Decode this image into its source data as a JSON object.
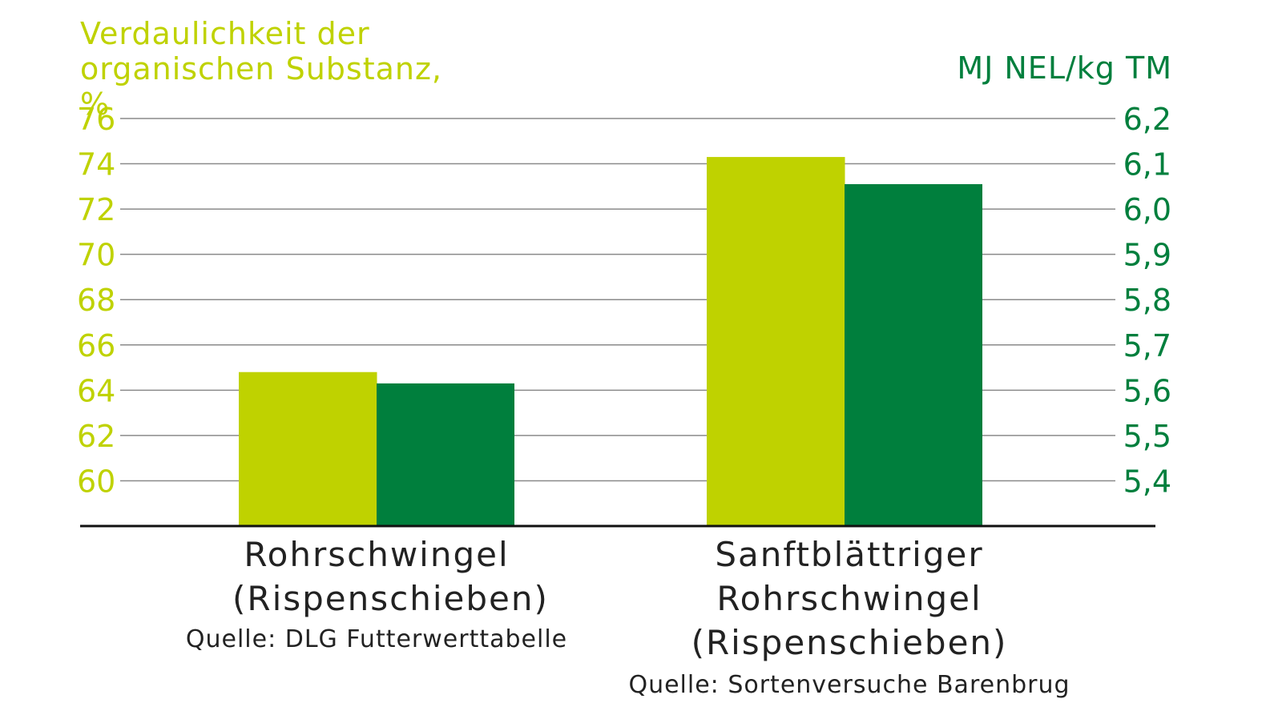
{
  "chart_data": {
    "type": "bar",
    "ylabel_left": "Verdaulichkeit der organischen Substanz, %",
    "ylabel_right": "MJ NEL/kg TM",
    "ylim_left": [
      58,
      76
    ],
    "yticks_left": [
      "60",
      "62",
      "64",
      "66",
      "68",
      "70",
      "72",
      "74",
      "76"
    ],
    "ylim_right": [
      5.3,
      6.2
    ],
    "yticks_right": [
      "5,4",
      "5,5",
      "5,6",
      "5,7",
      "5,8",
      "5,9",
      "6,0",
      "6,1",
      "6,2"
    ],
    "grid": true,
    "categories": [
      {
        "name": "Rohrschwingel (Rispenschieben)",
        "source": "Quelle: DLG Futterwerttabelle"
      },
      {
        "name": "Sanftblättriger Rohrschwingel (Rispenschieben)",
        "source": "Quelle: Sortenversuche Barenbrug"
      }
    ],
    "series": [
      {
        "axis": "left",
        "color": "#bfd200",
        "values": [
          64.8,
          74.3
        ]
      },
      {
        "axis": "right",
        "color": "#007f3d",
        "values": [
          5.615,
          6.055
        ]
      }
    ]
  }
}
